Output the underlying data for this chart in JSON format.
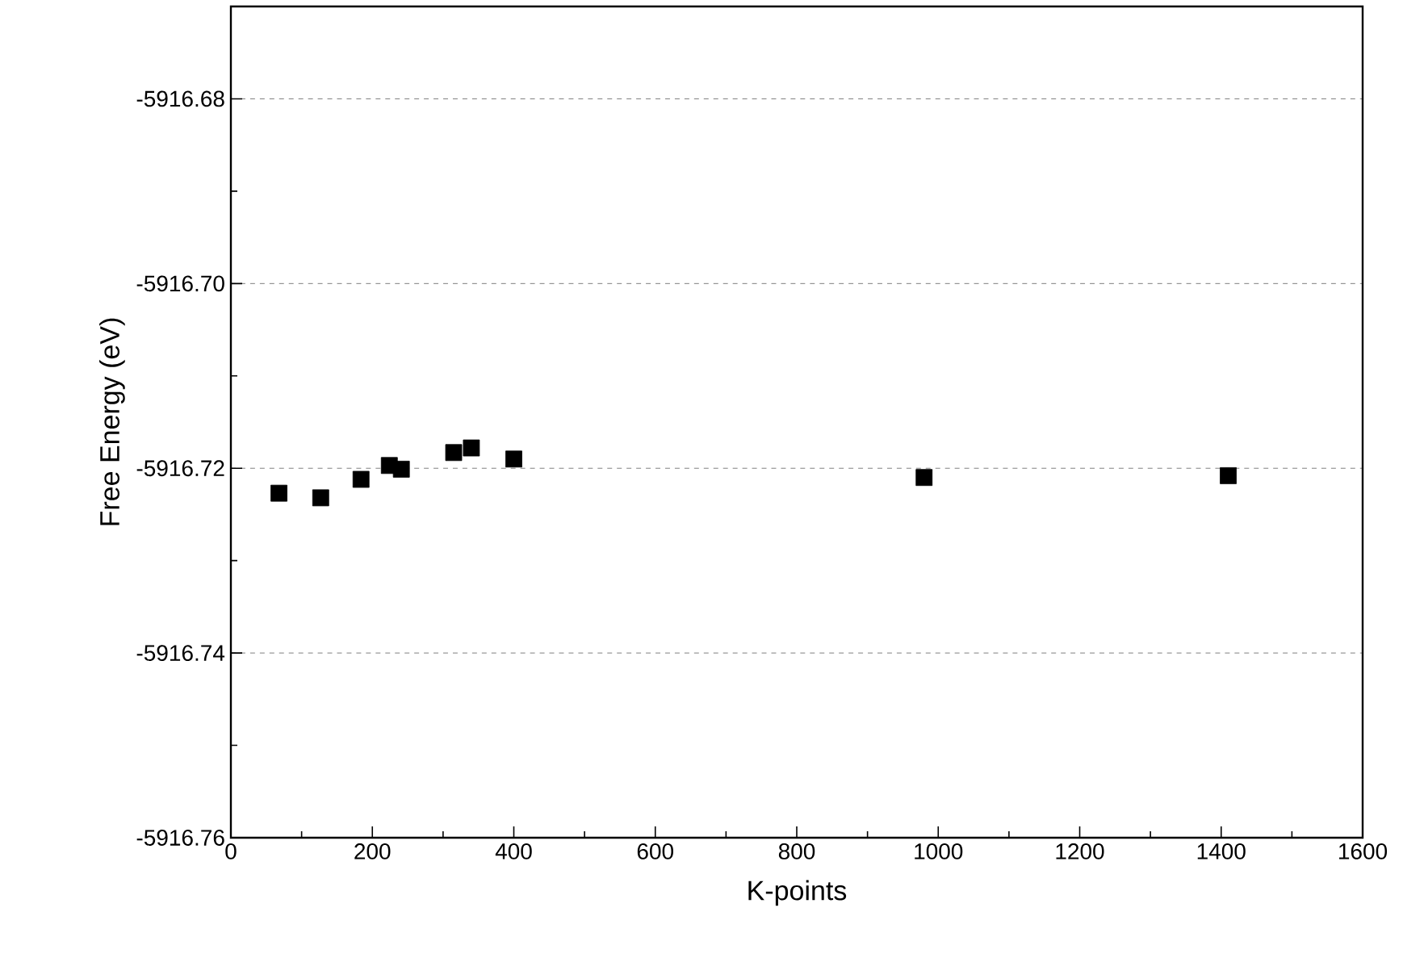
{
  "chart_data": {
    "type": "scatter",
    "xlabel": "K-points",
    "ylabel": "Free Energy (eV)",
    "x": [
      68,
      127,
      184,
      224,
      241,
      315,
      340,
      400,
      980,
      1410
    ],
    "values": [
      -5916.7227,
      -5916.7232,
      -5916.7212,
      -5916.7197,
      -5916.7201,
      -5916.7183,
      -5916.7178,
      -5916.719,
      -5916.721,
      -5916.7208
    ],
    "color": "#000000",
    "marker": "square",
    "grid": "y",
    "xlim": [
      0,
      1600
    ],
    "xticks": [
      0,
      200,
      400,
      600,
      800,
      1000,
      1200,
      1400,
      1600
    ],
    "ylim": [
      -5916.76,
      -5916.67
    ],
    "yticks": [
      -5916.76,
      -5916.74,
      -5916.72,
      {
        "value": -5916.7,
        "label": "-5916.70"
      },
      -5916.68
    ]
  }
}
